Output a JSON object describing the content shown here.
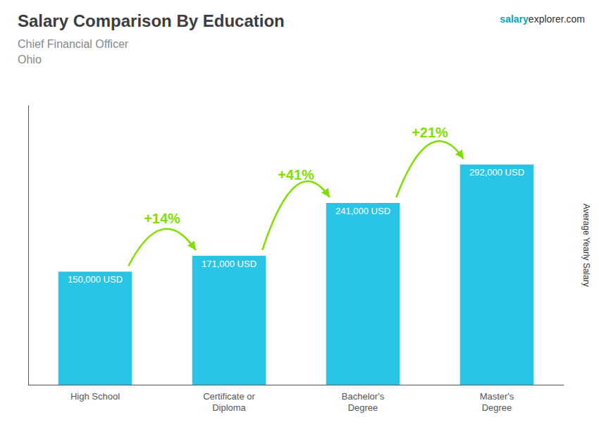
{
  "chart_data": {
    "type": "bar",
    "title": "Salary Comparison By Education",
    "subtitle": [
      "Chief Financial Officer",
      "Ohio"
    ],
    "ylabel": "Average Yearly Salary",
    "categories": [
      "High School",
      "Certificate or\nDiploma",
      "Bachelor's\nDegree",
      "Master's\nDegree"
    ],
    "values": [
      150000,
      171000,
      241000,
      292000
    ],
    "value_labels": [
      "150,000 USD",
      "171,000 USD",
      "241,000 USD",
      "292,000 USD"
    ],
    "data_labels": true,
    "color": "#29c5e6",
    "ylim": [
      0,
      370000
    ],
    "grid": false,
    "tick_labels": "x",
    "annotations": [
      {
        "text": "salary"
      },
      {
        "text": "explorer.com"
      },
      {
        "text": "+14%",
        "color": "#7fe000",
        "between": [
          "High School",
          "Certificate or\nDiploma"
        ]
      },
      {
        "text": "+41%",
        "color": "#7fe000",
        "between": [
          "Certificate or\nDiploma",
          "Bachelor's\nDegree"
        ]
      },
      {
        "text": "+21%",
        "color": "#7fe000",
        "between": [
          "Bachelor's\nDegree",
          "Master's\nDegree"
        ]
      }
    ]
  }
}
